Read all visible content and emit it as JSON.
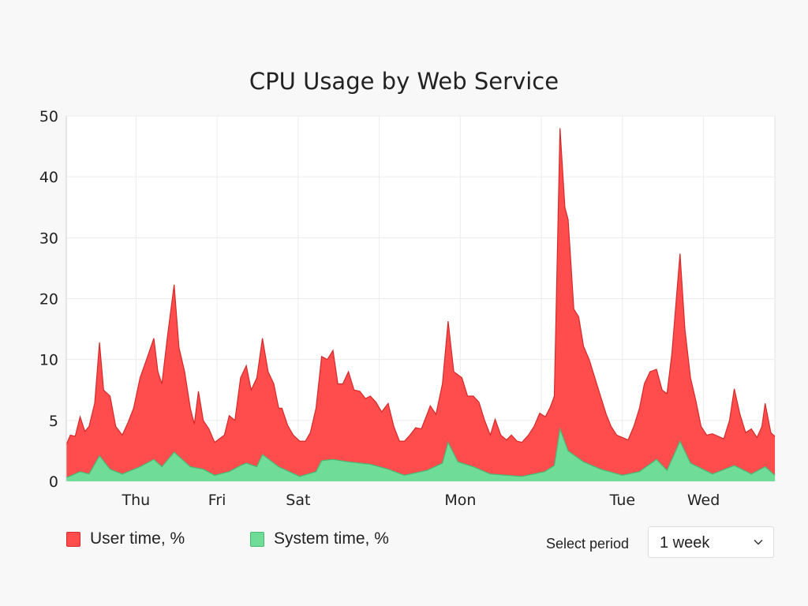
{
  "chart_data": {
    "type": "area",
    "title": "CPU Usage by Web Service",
    "y_ticks": [
      0,
      5,
      10,
      20,
      30,
      40,
      50
    ],
    "ylim": [
      0,
      50
    ],
    "xlim": [
      0.14,
      8.88
    ],
    "x_ticks": [
      {
        "x": 1,
        "label": "Thu"
      },
      {
        "x": 2,
        "label": "Fri"
      },
      {
        "x": 3,
        "label": "Sat"
      },
      {
        "x": 4,
        "label": ""
      },
      {
        "x": 5,
        "label": "Mon"
      },
      {
        "x": 6,
        "label": ""
      },
      {
        "x": 7,
        "label": "Tue"
      },
      {
        "x": 8,
        "label": "Wed"
      }
    ],
    "grid": true,
    "legend_position": "bottom-left",
    "series": [
      {
        "name": "User time, %",
        "color": "#ff4d4d",
        "stroke": "#d42a2a",
        "points": [
          [
            0.14,
            3
          ],
          [
            0.19,
            3.8
          ],
          [
            0.25,
            3.7
          ],
          [
            0.31,
            5.3
          ],
          [
            0.37,
            4.1
          ],
          [
            0.42,
            4.5
          ],
          [
            0.49,
            6.4
          ],
          [
            0.55,
            12.8
          ],
          [
            0.6,
            7.5
          ],
          [
            0.68,
            7
          ],
          [
            0.75,
            4.5
          ],
          [
            0.83,
            3.8
          ],
          [
            0.9,
            4.8
          ],
          [
            0.97,
            6
          ],
          [
            1.05,
            8.5
          ],
          [
            1.13,
            10
          ],
          [
            1.22,
            13.5
          ],
          [
            1.27,
            9
          ],
          [
            1.32,
            8
          ],
          [
            1.39,
            14
          ],
          [
            1.47,
            22.3
          ],
          [
            1.53,
            12
          ],
          [
            1.6,
            9
          ],
          [
            1.67,
            6
          ],
          [
            1.72,
            4.7
          ],
          [
            1.77,
            7.4
          ],
          [
            1.83,
            5
          ],
          [
            1.9,
            4.3
          ],
          [
            1.97,
            3.2
          ],
          [
            2.03,
            3.5
          ],
          [
            2.09,
            3.8
          ],
          [
            2.15,
            5.4
          ],
          [
            2.22,
            5
          ],
          [
            2.29,
            8.5
          ],
          [
            2.36,
            9.5
          ],
          [
            2.42,
            7.5
          ],
          [
            2.49,
            8.5
          ],
          [
            2.56,
            13.5
          ],
          [
            2.63,
            9
          ],
          [
            2.7,
            8
          ],
          [
            2.76,
            6
          ],
          [
            2.8,
            6
          ],
          [
            2.87,
            4.6
          ],
          [
            2.94,
            3.8
          ],
          [
            3.02,
            3.3
          ],
          [
            3.09,
            3.3
          ],
          [
            3.15,
            4
          ],
          [
            3.22,
            6
          ],
          [
            3.29,
            10.5
          ],
          [
            3.36,
            10
          ],
          [
            3.43,
            11.5
          ],
          [
            3.49,
            8
          ],
          [
            3.55,
            8
          ],
          [
            3.62,
            9
          ],
          [
            3.69,
            7.5
          ],
          [
            3.76,
            7.4
          ],
          [
            3.83,
            6.8
          ],
          [
            3.89,
            7
          ],
          [
            3.96,
            6.5
          ],
          [
            4.03,
            5.7
          ],
          [
            4.11,
            6.4
          ],
          [
            4.18,
            4.5
          ],
          [
            4.25,
            3.3
          ],
          [
            4.31,
            3.3
          ],
          [
            4.38,
            3.8
          ],
          [
            4.45,
            4.4
          ],
          [
            4.52,
            4.3
          ],
          [
            4.59,
            5.5
          ],
          [
            4.63,
            6.2
          ],
          [
            4.7,
            5.5
          ],
          [
            4.78,
            8
          ],
          [
            4.85,
            16.3
          ],
          [
            4.92,
            9
          ],
          [
            5.02,
            8.5
          ],
          [
            5.09,
            7
          ],
          [
            5.16,
            7
          ],
          [
            5.23,
            6.5
          ],
          [
            5.3,
            5
          ],
          [
            5.37,
            3.8
          ],
          [
            5.43,
            5.1
          ],
          [
            5.5,
            3.8
          ],
          [
            5.57,
            3.4
          ],
          [
            5.63,
            3.8
          ],
          [
            5.7,
            3.3
          ],
          [
            5.76,
            3.2
          ],
          [
            5.84,
            3.8
          ],
          [
            5.91,
            4.5
          ],
          [
            5.98,
            5.6
          ],
          [
            6.05,
            5.3
          ],
          [
            6.11,
            6.1
          ],
          [
            6.16,
            7
          ],
          [
            6.23,
            48
          ],
          [
            6.29,
            35
          ],
          [
            6.33,
            33
          ],
          [
            6.4,
            18.3
          ],
          [
            6.46,
            17
          ],
          [
            6.52,
            12.2
          ],
          [
            6.59,
            10
          ],
          [
            6.66,
            8.5
          ],
          [
            6.73,
            7
          ],
          [
            6.8,
            5.5
          ],
          [
            6.86,
            4.5
          ],
          [
            6.93,
            3.8
          ],
          [
            7,
            3.6
          ],
          [
            7.07,
            3.4
          ],
          [
            7.14,
            4.5
          ],
          [
            7.21,
            6
          ],
          [
            7.27,
            8
          ],
          [
            7.34,
            9
          ],
          [
            7.42,
            9.2
          ],
          [
            7.49,
            7.5
          ],
          [
            7.55,
            7.2
          ],
          [
            7.61,
            11
          ],
          [
            7.71,
            27.4
          ],
          [
            7.77,
            15
          ],
          [
            7.84,
            8.5
          ],
          [
            7.91,
            6.5
          ],
          [
            7.97,
            4.5
          ],
          [
            8.04,
            3.8
          ],
          [
            8.11,
            3.9
          ],
          [
            8.18,
            3.7
          ],
          [
            8.25,
            3.5
          ],
          [
            8.32,
            5
          ],
          [
            8.38,
            7.6
          ],
          [
            8.45,
            5.5
          ],
          [
            8.52,
            4
          ],
          [
            8.59,
            4.3
          ],
          [
            8.66,
            3.6
          ],
          [
            8.72,
            4.5
          ],
          [
            8.76,
            6.4
          ],
          [
            8.83,
            4
          ],
          [
            8.88,
            3.7
          ]
        ]
      },
      {
        "name": "System time, %",
        "color": "#6fdc97",
        "stroke": "#47b874",
        "points": [
          [
            0.14,
            0.3
          ],
          [
            0.31,
            0.8
          ],
          [
            0.42,
            0.6
          ],
          [
            0.55,
            2.1
          ],
          [
            0.68,
            1
          ],
          [
            0.83,
            0.6
          ],
          [
            1.05,
            1.2
          ],
          [
            1.22,
            1.8
          ],
          [
            1.32,
            1.2
          ],
          [
            1.47,
            2.4
          ],
          [
            1.67,
            1.2
          ],
          [
            1.83,
            1
          ],
          [
            1.97,
            0.5
          ],
          [
            2.15,
            0.8
          ],
          [
            2.29,
            1.3
          ],
          [
            2.36,
            1.5
          ],
          [
            2.49,
            1.2
          ],
          [
            2.56,
            2.2
          ],
          [
            2.76,
            1.2
          ],
          [
            3.02,
            0.4
          ],
          [
            3.22,
            0.8
          ],
          [
            3.29,
            1.7
          ],
          [
            3.43,
            1.8
          ],
          [
            3.62,
            1.6
          ],
          [
            3.89,
            1.4
          ],
          [
            4.11,
            1
          ],
          [
            4.31,
            0.5
          ],
          [
            4.59,
            0.9
          ],
          [
            4.78,
            1.5
          ],
          [
            4.85,
            3.2
          ],
          [
            4.97,
            1.6
          ],
          [
            5.16,
            1.2
          ],
          [
            5.37,
            0.6
          ],
          [
            5.76,
            0.4
          ],
          [
            6.04,
            0.8
          ],
          [
            6.16,
            1.3
          ],
          [
            6.23,
            4.3
          ],
          [
            6.33,
            2.5
          ],
          [
            6.52,
            1.6
          ],
          [
            6.73,
            1
          ],
          [
            7,
            0.5
          ],
          [
            7.21,
            0.8
          ],
          [
            7.42,
            1.8
          ],
          [
            7.55,
            0.9
          ],
          [
            7.71,
            3.3
          ],
          [
            7.84,
            1.5
          ],
          [
            8.11,
            0.6
          ],
          [
            8.38,
            1.3
          ],
          [
            8.59,
            0.6
          ],
          [
            8.76,
            1.2
          ],
          [
            8.88,
            0.5
          ]
        ]
      }
    ]
  },
  "controls": {
    "period_label": "Select period",
    "period_value": "1 week",
    "chevron_icon": "chevron-down-icon"
  }
}
